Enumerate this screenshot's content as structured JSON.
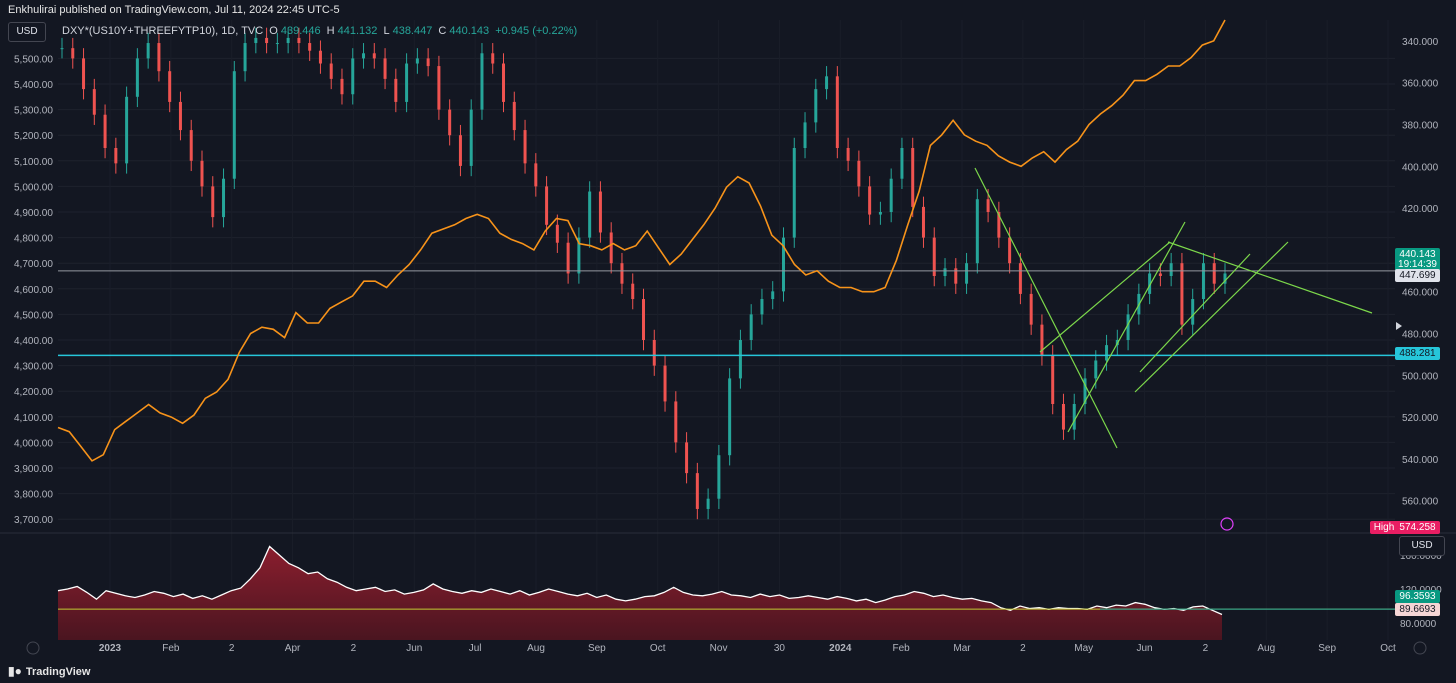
{
  "header": {
    "publisher": "Enkhulirai published on TradingView.com, Jul 11, 2024 22:45 UTC-5"
  },
  "legend": {
    "symbol": "DXY*(US10Y+THREEFYTP10), 1D, TVC",
    "open_label": "O",
    "open": "439.446",
    "high_label": "H",
    "high": "441.132",
    "low_label": "L",
    "low": "438.447",
    "close_label": "C",
    "close": "440.143",
    "change": "+0.945 (+0.22%)"
  },
  "buttons": {
    "usd_top": "USD",
    "usd_bottom": "USD"
  },
  "price_tags": {
    "last": "440.143",
    "countdown": "19:14:39",
    "white_line": "447.699",
    "cyan_line": "488.281",
    "high_label": "High",
    "high_value": "574.258",
    "ind_green": "96.3593",
    "ind_white": "89.6693"
  },
  "colors": {
    "background": "#131722",
    "up": "#26a69a",
    "down": "#ef5350",
    "overlay_line": "#f7931a",
    "trendline": "#7cd84b",
    "cyan_line": "#26c6da",
    "indicator_fill": "#5c1a24"
  },
  "footer": {
    "logo": "TradingView",
    "logo_icon": "tradingview-logo-icon"
  },
  "chart_data": [
    {
      "type": "line",
      "series": [
        {
          "values_note": "",
          "candles": [
            [
              0,
              5540
            ],
            [
              3,
              5500
            ],
            [
              6,
              5380
            ],
            [
              9,
              5280
            ],
            [
              12,
              5150
            ],
            [
              15,
              5090
            ],
            [
              18,
              5350
            ],
            [
              21,
              5500
            ],
            [
              24,
              5560
            ],
            [
              27,
              5450
            ],
            [
              30,
              5330
            ],
            [
              33,
              5220
            ],
            [
              36,
              5100
            ],
            [
              39,
              5000
            ],
            [
              42,
              4880
            ],
            [
              45,
              5030
            ],
            [
              48,
              5450
            ],
            [
              51,
              5560
            ],
            [
              54,
              5580
            ],
            [
              57,
              5560
            ],
            [
              60,
              5560
            ],
            [
              63,
              5580
            ],
            [
              66,
              5560
            ],
            [
              69,
              5530
            ],
            [
              72,
              5480
            ],
            [
              75,
              5420
            ],
            [
              78,
              5360
            ],
            [
              81,
              5500
            ],
            [
              84,
              5520
            ],
            [
              87,
              5500
            ],
            [
              90,
              5420
            ],
            [
              93,
              5330
            ],
            [
              96,
              5480
            ],
            [
              99,
              5500
            ],
            [
              102,
              5470
            ],
            [
              105,
              5300
            ],
            [
              108,
              5200
            ],
            [
              111,
              5080
            ],
            [
              114,
              5300
            ],
            [
              117,
              5520
            ],
            [
              120,
              5480
            ],
            [
              123,
              5330
            ],
            [
              126,
              5220
            ],
            [
              129,
              5090
            ],
            [
              132,
              5000
            ],
            [
              135,
              4850
            ],
            [
              138,
              4780
            ],
            [
              141,
              4660
            ],
            [
              144,
              4800
            ],
            [
              147,
              4980
            ],
            [
              150,
              4820
            ],
            [
              153,
              4700
            ],
            [
              156,
              4620
            ],
            [
              159,
              4560
            ],
            [
              162,
              4400
            ],
            [
              165,
              4300
            ],
            [
              168,
              4160
            ],
            [
              171,
              4000
            ],
            [
              174,
              3880
            ],
            [
              177,
              3740
            ],
            [
              180,
              3780
            ],
            [
              183,
              3950
            ],
            [
              186,
              4250
            ],
            [
              189,
              4400
            ],
            [
              192,
              4500
            ],
            [
              195,
              4560
            ],
            [
              198,
              4590
            ],
            [
              201,
              4800
            ],
            [
              204,
              5150
            ],
            [
              207,
              5250
            ],
            [
              210,
              5380
            ],
            [
              213,
              5430
            ],
            [
              216,
              5150
            ],
            [
              219,
              5100
            ],
            [
              222,
              5000
            ],
            [
              225,
              4890
            ],
            [
              228,
              4900
            ],
            [
              231,
              5030
            ],
            [
              234,
              5150
            ],
            [
              237,
              4920
            ],
            [
              240,
              4800
            ],
            [
              243,
              4650
            ],
            [
              246,
              4680
            ],
            [
              249,
              4620
            ],
            [
              252,
              4700
            ],
            [
              255,
              4950
            ],
            [
              258,
              4900
            ],
            [
              261,
              4800
            ],
            [
              264,
              4700
            ],
            [
              267,
              4580
            ],
            [
              270,
              4460
            ],
            [
              273,
              4340
            ],
            [
              276,
              4150
            ],
            [
              279,
              4050
            ],
            [
              282,
              4150
            ],
            [
              285,
              4250
            ],
            [
              288,
              4320
            ],
            [
              291,
              4380
            ],
            [
              294,
              4400
            ],
            [
              297,
              4500
            ],
            [
              300,
              4580
            ],
            [
              303,
              4660
            ],
            [
              306,
              4650
            ],
            [
              309,
              4700
            ],
            [
              312,
              4460
            ],
            [
              315,
              4560
            ],
            [
              318,
              4700
            ],
            [
              321,
              4620
            ],
            [
              324,
              4660
            ]
          ]
        },
        {
          "name": "",
          "overlay_values_desc": "",
          "values": [
            525,
            527,
            534,
            541,
            538,
            526,
            522,
            518,
            514,
            518,
            520,
            523,
            519,
            511,
            508,
            502,
            489,
            480,
            477,
            478,
            482,
            470,
            475,
            475,
            468,
            465,
            462,
            455,
            455,
            458,
            452,
            447,
            440,
            432,
            430,
            428,
            425,
            423,
            425,
            432,
            435,
            437,
            440,
            431,
            425,
            426,
            437,
            438,
            440,
            437,
            440,
            438,
            431,
            439,
            447,
            442,
            435,
            428,
            420,
            410,
            405,
            408,
            419,
            433,
            438,
            447,
            452,
            450,
            455,
            458,
            458,
            460,
            460,
            458,
            445,
            428,
            412,
            390,
            385,
            378,
            385,
            388,
            390,
            395,
            398,
            400,
            396,
            393,
            398,
            392,
            388,
            380,
            375,
            371,
            366,
            359,
            359,
            356,
            352,
            352,
            348,
            342,
            340,
            330
          ]
        }
      ],
      "left_axis_ticks": [
        "5,500.00",
        "5,400.00",
        "5,300.00",
        "5,200.00",
        "5,100.00",
        "5,000.00",
        "4,900.00",
        "4,800.00",
        "4,700.00",
        "4,600.00",
        "4,500.00",
        "4,400.00",
        "4,300.00",
        "4,200.00",
        "4,100.00",
        "4,000.00",
        "3,900.00",
        "3,800.00",
        "3,700.00"
      ],
      "right_axis_ticks": [
        "340.000",
        "360.000",
        "380.000",
        "400.000",
        "420.000",
        "460.000",
        "480.000",
        "500.000",
        "520.000",
        "540.000",
        "560.000"
      ],
      "x_ticks": [
        "2023",
        "Feb",
        "2",
        "Apr",
        "2",
        "Jun",
        "Jul",
        "Aug",
        "Sep",
        "Oct",
        "Nov",
        "30",
        "2024",
        "Feb",
        "Mar",
        "2",
        "May",
        "Jun",
        "2",
        "Aug",
        "Sep",
        "Oct"
      ],
      "horizontal_lines": [
        4670,
        4340
      ],
      "ylim_left": [
        3650,
        5650
      ],
      "ylim_right": [
        575,
        330
      ]
    },
    {
      "type": "area",
      "right_axis_ticks": [
        "160.0000",
        "120.0000",
        "80.0000"
      ],
      "ylim": [
        60,
        180
      ],
      "baseline": 96.36,
      "values": [
        118,
        120,
        123,
        116,
        108,
        118,
        115,
        112,
        110,
        113,
        117,
        115,
        111,
        114,
        109,
        112,
        108,
        113,
        118,
        121,
        132,
        145,
        170,
        160,
        150,
        145,
        138,
        140,
        132,
        128,
        122,
        118,
        120,
        122,
        117,
        119,
        114,
        116,
        119,
        126,
        120,
        117,
        115,
        118,
        116,
        120,
        117,
        114,
        118,
        113,
        116,
        120,
        117,
        114,
        112,
        115,
        110,
        113,
        108,
        106,
        108,
        111,
        112,
        116,
        122,
        116,
        113,
        112,
        114,
        117,
        113,
        112,
        110,
        114,
        111,
        113,
        109,
        110,
        112,
        110,
        108,
        111,
        109,
        106,
        108,
        104,
        107,
        111,
        113,
        117,
        115,
        111,
        113,
        110,
        108,
        109,
        106,
        104,
        98,
        95,
        100,
        97,
        98,
        96,
        98,
        97,
        97,
        96,
        100,
        98,
        101,
        100,
        104,
        102,
        98,
        96,
        97,
        95,
        99,
        100,
        95,
        90
      ]
    }
  ]
}
